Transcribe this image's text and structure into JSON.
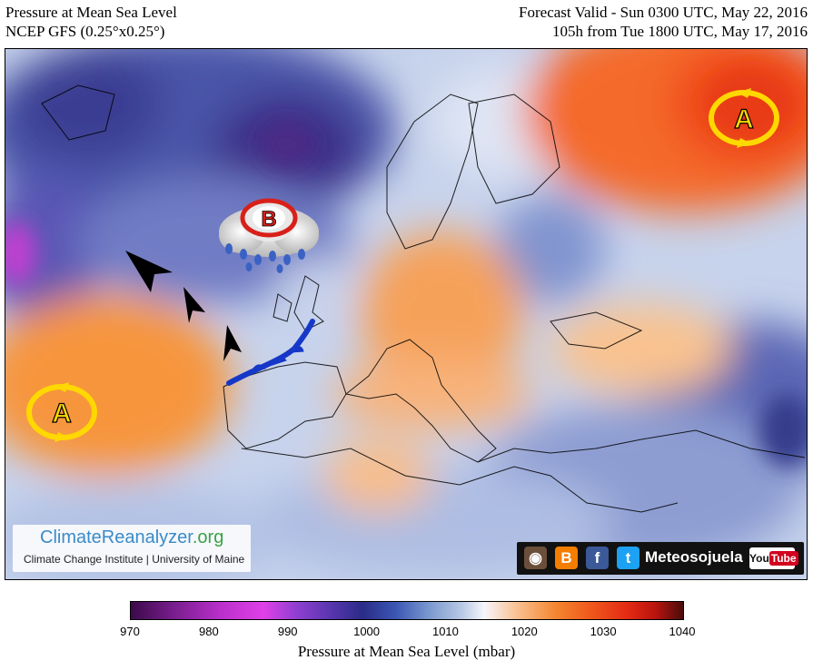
{
  "header": {
    "left_line1": "Pressure at Mean Sea Level",
    "left_line2": "NCEP GFS (0.25°x0.25°)",
    "right_line1": "Forecast Valid - Sun 0300 UTC, May 22, 2016",
    "right_line2": "105h from Tue 1800 UTC, May 17, 2016"
  },
  "map": {
    "high_symbol_label": "A",
    "low_symbol_label": "B",
    "colors": {
      "high": "#ffd800",
      "low": "#d8201a",
      "front": "#1538c8",
      "arrow": "#000000"
    }
  },
  "credit": {
    "brand_main": "ClimateReanalyzer",
    "brand_suffix": ".org",
    "subtitle": "Climate Change Institute | University of Maine"
  },
  "social": {
    "icons": [
      "instagram-icon",
      "blogger-icon",
      "facebook-icon",
      "twitter-icon"
    ],
    "handle": "Meteosojuela",
    "youtube_you": "You",
    "youtube_tube": "Tube"
  },
  "colorbar": {
    "ticks": [
      "970",
      "980",
      "990",
      "1000",
      "1010",
      "1020",
      "1030",
      "1040"
    ],
    "label": "Pressure at Mean Sea Level (mbar)",
    "range": [
      970,
      1040
    ]
  }
}
